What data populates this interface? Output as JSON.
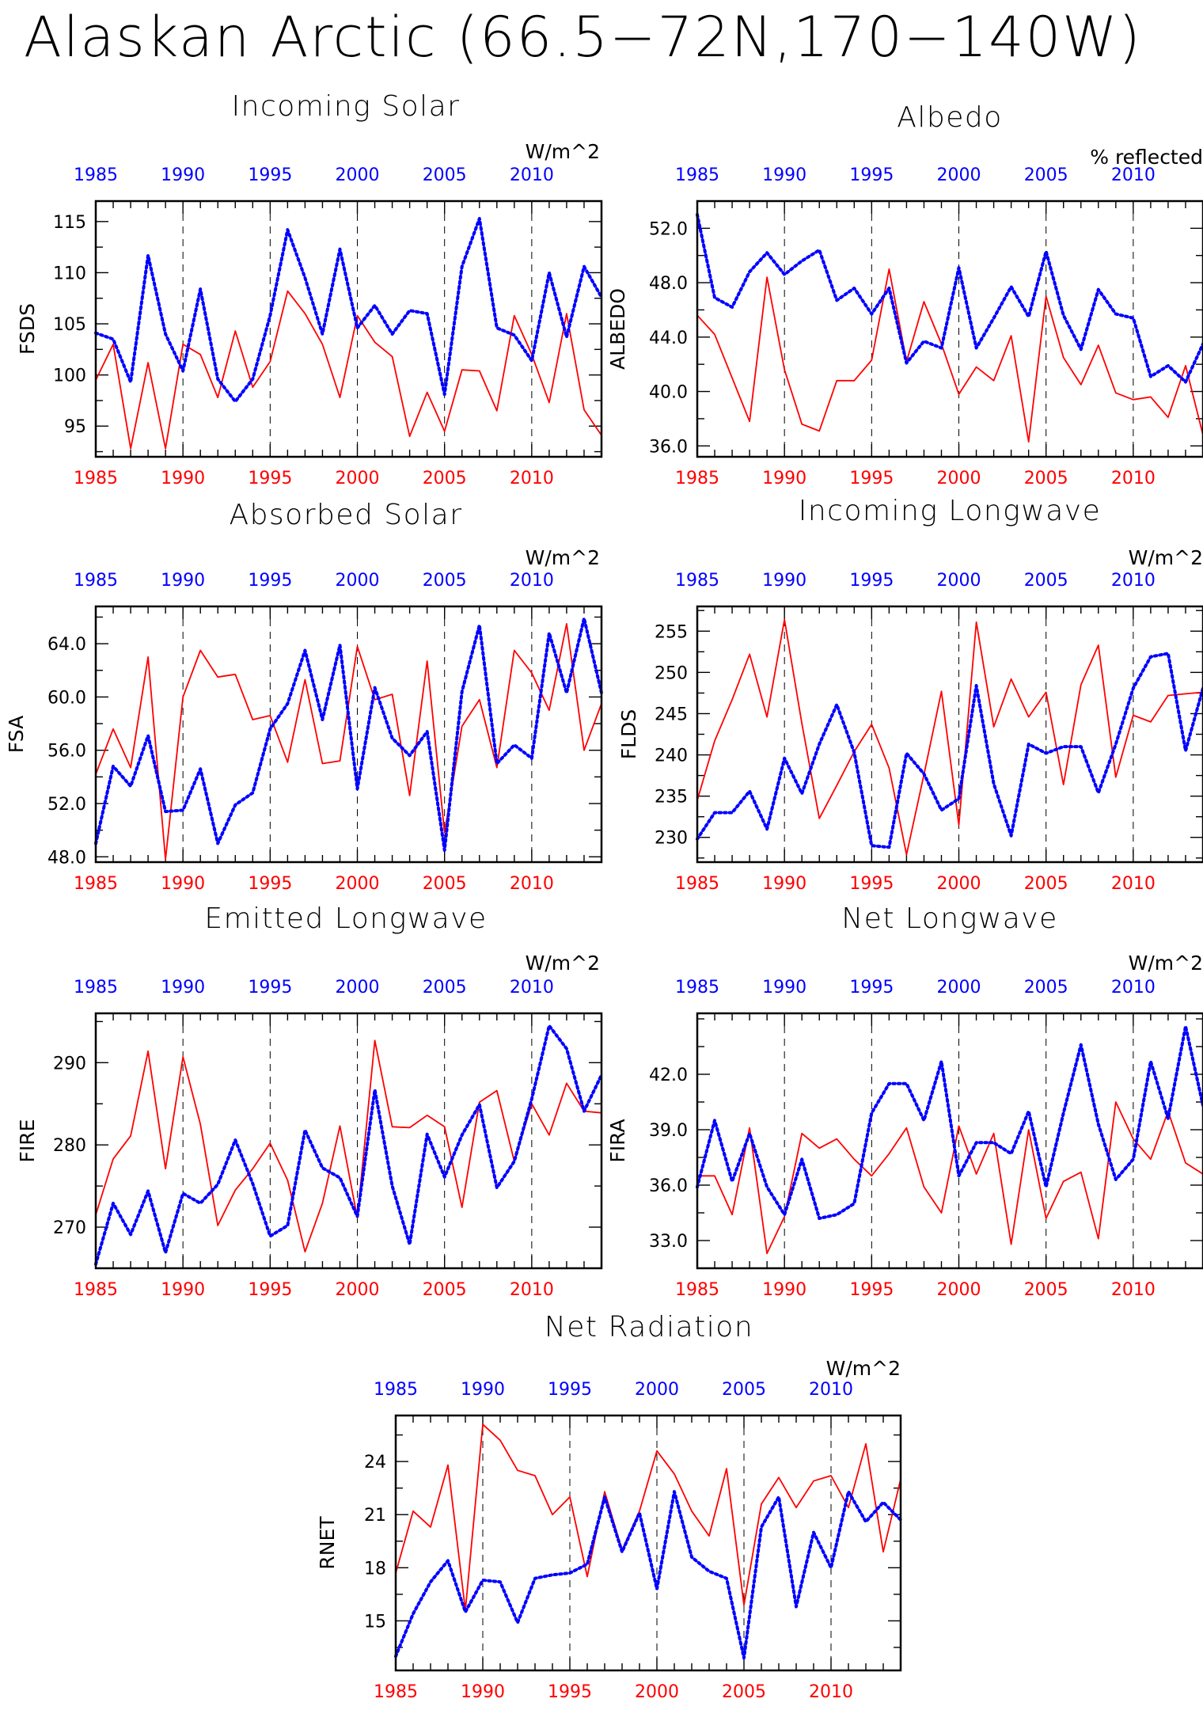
{
  "page_title": "Alaskan Arctic (66.5−72N,170−140W)",
  "colors": {
    "series_a": "#ff0000",
    "series_b": "#0000ff",
    "frame": "#000000"
  },
  "chart_data": [
    {
      "type": "line",
      "title": "Incoming Solar",
      "ylabel": "FSDS",
      "units": "W/m^2",
      "xlim": [
        1985,
        2014
      ],
      "ylim": [
        92,
        117
      ],
      "yticks": [
        95,
        100,
        105,
        110,
        115
      ],
      "xticks_bottom": [
        "1985",
        "1990",
        "1995",
        "2000",
        "2005",
        "2010"
      ],
      "xticks_top": [
        "1985",
        "1990",
        "1995",
        "2000",
        "2005",
        "2010"
      ],
      "x": [
        1985,
        1986,
        1987,
        1988,
        1989,
        1990,
        1991,
        1992,
        1993,
        1994,
        1995,
        1996,
        1997,
        1998,
        1999,
        2000,
        2001,
        2002,
        2003,
        2004,
        2005,
        2006,
        2007,
        2008,
        2009,
        2010,
        2011,
        2012,
        2013,
        2014
      ],
      "series": [
        {
          "color": "red",
          "style": "solid",
          "values": [
            99.5,
            103.0,
            92.8,
            101.2,
            92.8,
            103.0,
            102.0,
            97.8,
            104.3,
            98.8,
            101.3,
            108.2,
            106.0,
            103.0,
            97.8,
            105.8,
            103.2,
            101.8,
            94.0,
            98.3,
            94.5,
            100.5,
            100.4,
            96.5,
            105.8,
            102.0,
            97.3,
            106.0,
            96.6,
            94.1
          ]
        },
        {
          "color": "blue",
          "style": "dotted",
          "values": [
            104.1,
            103.5,
            99.3,
            111.7,
            104.0,
            100.4,
            108.4,
            99.6,
            97.4,
            99.6,
            105.8,
            114.2,
            109.5,
            104.0,
            112.3,
            104.6,
            106.8,
            104.0,
            106.3,
            106.0,
            98.1,
            110.6,
            115.3,
            104.6,
            103.9,
            101.4,
            110.0,
            103.7,
            110.6,
            107.6
          ]
        }
      ]
    },
    {
      "type": "line",
      "title": "Albedo",
      "ylabel": "ALBEDO",
      "units": "% reflected",
      "xlim": [
        1985,
        2014
      ],
      "ylim": [
        35.2,
        54.0
      ],
      "yticks": [
        "36.0",
        "40.0",
        "44.0",
        "48.0",
        "52.0"
      ],
      "xticks_bottom": [
        "1985",
        "1990",
        "1995",
        "2000",
        "2005",
        "2010"
      ],
      "xticks_top": [
        "1985",
        "1990",
        "1995",
        "2000",
        "2005",
        "2010"
      ],
      "x": [
        1985,
        1986,
        1987,
        1988,
        1989,
        1990,
        1991,
        1992,
        1993,
        1994,
        1995,
        1996,
        1997,
        1998,
        1999,
        2000,
        2001,
        2002,
        2003,
        2004,
        2005,
        2006,
        2007,
        2008,
        2009,
        2010,
        2011,
        2012,
        2013,
        2014
      ],
      "series": [
        {
          "color": "red",
          "style": "solid",
          "values": [
            45.6,
            44.2,
            41.0,
            37.8,
            48.4,
            41.6,
            37.6,
            37.1,
            40.8,
            40.8,
            42.3,
            49.0,
            42.2,
            46.6,
            43.5,
            39.8,
            41.8,
            40.8,
            44.1,
            36.3,
            47.0,
            42.5,
            40.5,
            43.4,
            39.9,
            39.4,
            39.6,
            38.1,
            41.9,
            36.8
          ]
        },
        {
          "color": "blue",
          "style": "dotted",
          "values": [
            53.0,
            46.9,
            46.2,
            48.8,
            50.2,
            48.6,
            49.6,
            50.4,
            46.7,
            47.6,
            45.7,
            47.6,
            42.1,
            43.7,
            43.2,
            49.1,
            43.2,
            45.4,
            47.7,
            45.5,
            50.3,
            45.6,
            43.1,
            47.5,
            45.7,
            45.4,
            41.1,
            41.9,
            40.7,
            43.5
          ]
        }
      ]
    },
    {
      "type": "line",
      "title": "Absorbed Solar",
      "ylabel": "FSA",
      "units": "W/m^2",
      "xlim": [
        1985,
        2014
      ],
      "ylim": [
        47.6,
        66.8
      ],
      "yticks": [
        "48.0",
        "52.0",
        "56.0",
        "60.0",
        "64.0"
      ],
      "xticks_bottom": [
        "1985",
        "1990",
        "1995",
        "2000",
        "2005",
        "2010"
      ],
      "xticks_top": [
        "1985",
        "1990",
        "1995",
        "2000",
        "2005",
        "2010"
      ],
      "x": [
        1985,
        1986,
        1987,
        1988,
        1989,
        1990,
        1991,
        1992,
        1993,
        1994,
        1995,
        1996,
        1997,
        1998,
        1999,
        2000,
        2001,
        2002,
        2003,
        2004,
        2005,
        2006,
        2007,
        2008,
        2009,
        2010,
        2011,
        2012,
        2013,
        2014
      ],
      "series": [
        {
          "color": "red",
          "style": "solid",
          "values": [
            54.2,
            57.6,
            54.7,
            63.0,
            47.8,
            60.0,
            63.5,
            61.5,
            61.7,
            58.3,
            58.6,
            55.1,
            61.3,
            55.0,
            55.2,
            63.8,
            59.8,
            60.2,
            52.6,
            62.7,
            49.8,
            57.8,
            59.8,
            54.7,
            63.5,
            61.8,
            59.0,
            65.5,
            56.0,
            59.5
          ]
        },
        {
          "color": "blue",
          "style": "dotted",
          "values": [
            49.0,
            54.8,
            53.3,
            57.1,
            51.4,
            51.5,
            54.6,
            49.0,
            51.9,
            52.8,
            57.6,
            59.5,
            63.5,
            58.3,
            63.9,
            53.1,
            60.7,
            56.9,
            55.6,
            57.4,
            48.5,
            60.4,
            65.4,
            55.0,
            56.4,
            55.4,
            64.8,
            60.3,
            65.9,
            60.3
          ]
        }
      ]
    },
    {
      "type": "line",
      "title": "Incoming Longwave",
      "ylabel": "FLDS",
      "units": "W/m^2",
      "xlim": [
        1985,
        2014
      ],
      "ylim": [
        227,
        258
      ],
      "yticks": [
        230,
        235,
        240,
        245,
        250,
        255
      ],
      "xticks_bottom": [
        "1985",
        "1990",
        "1995",
        "2000",
        "2005",
        "2010"
      ],
      "xticks_top": [
        "1985",
        "1990",
        "1995",
        "2000",
        "2005",
        "2010"
      ],
      "x": [
        1985,
        1986,
        1987,
        1988,
        1989,
        1990,
        1991,
        1992,
        1993,
        1994,
        1995,
        1996,
        1997,
        1998,
        1999,
        2000,
        2001,
        2002,
        2003,
        2004,
        2005,
        2006,
        2007,
        2008,
        2009,
        2010,
        2011,
        2012,
        2013,
        2014
      ],
      "series": [
        {
          "color": "red",
          "style": "solid",
          "values": [
            234.5,
            241.7,
            246.7,
            252.2,
            244.6,
            256.4,
            243.8,
            232.3,
            236.3,
            240.4,
            243.7,
            238.4,
            227.9,
            237.6,
            247.7,
            231.5,
            256.1,
            243.4,
            249.2,
            244.6,
            247.6,
            236.4,
            248.5,
            253.3,
            237.3,
            244.8,
            244.0,
            247.2,
            247.4,
            247.6
          ]
        },
        {
          "color": "blue",
          "style": "dotted",
          "values": [
            229.8,
            233.0,
            233.0,
            235.6,
            231.0,
            239.6,
            235.3,
            241.3,
            246.1,
            240.3,
            229.0,
            228.8,
            240.2,
            237.7,
            233.3,
            234.7,
            248.4,
            236.5,
            230.2,
            241.3,
            240.2,
            241.0,
            241.0,
            235.4,
            241.3,
            248.1,
            251.9,
            252.3,
            240.5,
            248.1
          ]
        }
      ]
    },
    {
      "type": "line",
      "title": "Emitted Longwave",
      "ylabel": "FIRE",
      "units": "W/m^2",
      "xlim": [
        1985,
        2014
      ],
      "ylim": [
        265,
        296
      ],
      "yticks": [
        270,
        280,
        290
      ],
      "xticks_bottom": [
        "1985",
        "1990",
        "1995",
        "2000",
        "2005",
        "2010"
      ],
      "xticks_top": [
        "1985",
        "1990",
        "1995",
        "2000",
        "2005",
        "2010"
      ],
      "x": [
        1985,
        1986,
        1987,
        1988,
        1989,
        1990,
        1991,
        1992,
        1993,
        1994,
        1995,
        1996,
        1997,
        1998,
        1999,
        2000,
        2001,
        2002,
        2003,
        2004,
        2005,
        2006,
        2007,
        2008,
        2009,
        2010,
        2011,
        2012,
        2013,
        2014
      ],
      "series": [
        {
          "color": "red",
          "style": "solid",
          "values": [
            271.5,
            278.3,
            281.1,
            291.4,
            277.1,
            290.7,
            282.5,
            270.2,
            274.5,
            277.1,
            280.2,
            275.7,
            267.0,
            272.9,
            282.3,
            271.1,
            292.7,
            282.2,
            282.1,
            283.6,
            282.2,
            272.4,
            285.2,
            286.6,
            278.0,
            285.0,
            281.2,
            287.5,
            284.1,
            283.9
          ]
        },
        {
          "color": "blue",
          "style": "dotted",
          "values": [
            265.5,
            272.9,
            269.1,
            274.4,
            266.9,
            274.1,
            272.9,
            275.2,
            280.6,
            275.3,
            268.9,
            270.2,
            281.8,
            277.2,
            276.0,
            271.3,
            286.7,
            275.0,
            267.9,
            281.3,
            276.1,
            281.2,
            284.9,
            274.8,
            278.0,
            285.6,
            294.5,
            291.7,
            284.1,
            288.5
          ]
        }
      ]
    },
    {
      "type": "line",
      "title": "Net Longwave",
      "ylabel": "FIRA",
      "units": "W/m^2",
      "xlim": [
        1985,
        2014
      ],
      "ylim": [
        31.5,
        45.3
      ],
      "yticks": [
        "33.0",
        "36.0",
        "39.0",
        "42.0"
      ],
      "xticks_bottom": [
        "1985",
        "1990",
        "1995",
        "2000",
        "2005",
        "2010"
      ],
      "xticks_top": [
        "1985",
        "1990",
        "1995",
        "2000",
        "2005",
        "2010"
      ],
      "x": [
        1985,
        1986,
        1987,
        1988,
        1989,
        1990,
        1991,
        1992,
        1993,
        1994,
        1995,
        1996,
        1997,
        1998,
        1999,
        2000,
        2001,
        2002,
        2003,
        2004,
        2005,
        2006,
        2007,
        2008,
        2009,
        2010,
        2011,
        2012,
        2013,
        2014
      ],
      "series": [
        {
          "color": "red",
          "style": "solid",
          "values": [
            36.5,
            36.5,
            34.4,
            39.1,
            32.3,
            34.3,
            38.8,
            38.0,
            38.5,
            37.4,
            36.5,
            37.7,
            39.1,
            35.9,
            34.5,
            39.2,
            36.6,
            38.8,
            32.8,
            39.0,
            34.2,
            36.2,
            36.7,
            33.1,
            40.5,
            38.5,
            37.4,
            40.0,
            37.2,
            36.6
          ]
        },
        {
          "color": "blue",
          "style": "dotted",
          "values": [
            35.9,
            39.5,
            36.2,
            38.8,
            35.9,
            34.4,
            37.4,
            34.2,
            34.4,
            35.0,
            39.9,
            41.5,
            41.5,
            39.5,
            42.7,
            36.5,
            38.3,
            38.3,
            37.7,
            40.0,
            35.9,
            39.9,
            43.6,
            39.3,
            36.3,
            37.4,
            42.7,
            39.6,
            44.6,
            40.3
          ]
        }
      ]
    },
    {
      "type": "line",
      "title": "Net Radiation",
      "ylabel": "RNET",
      "units": "W/m^2",
      "xlim": [
        1985,
        2014
      ],
      "ylim": [
        12.2,
        26.6
      ],
      "yticks": [
        15,
        18,
        21,
        24
      ],
      "xticks_bottom": [
        "1985",
        "1990",
        "1995",
        "2000",
        "2005",
        "2010"
      ],
      "xticks_top": [
        "1985",
        "1990",
        "1995",
        "2000",
        "2005",
        "2010"
      ],
      "x": [
        1985,
        1986,
        1987,
        1988,
        1989,
        1990,
        1991,
        1992,
        1993,
        1994,
        1995,
        1996,
        1997,
        1998,
        1999,
        2000,
        2001,
        2002,
        2003,
        2004,
        2005,
        2006,
        2007,
        2008,
        2009,
        2010,
        2011,
        2012,
        2013,
        2014
      ],
      "series": [
        {
          "color": "red",
          "style": "solid",
          "values": [
            17.7,
            21.2,
            20.3,
            23.8,
            15.6,
            26.1,
            25.2,
            23.5,
            23.2,
            21.0,
            22.0,
            17.5,
            22.3,
            19.0,
            21.2,
            24.6,
            23.3,
            21.2,
            19.8,
            23.6,
            15.9,
            21.6,
            23.1,
            21.4,
            22.9,
            23.2,
            21.4,
            25.0,
            18.9,
            23.0
          ]
        },
        {
          "color": "blue",
          "style": "dotted",
          "values": [
            13.0,
            15.4,
            17.2,
            18.4,
            15.5,
            17.3,
            17.2,
            14.9,
            17.4,
            17.6,
            17.7,
            18.2,
            22.0,
            18.9,
            21.1,
            16.8,
            22.3,
            18.6,
            17.8,
            17.4,
            12.9,
            20.3,
            22.0,
            15.8,
            20.0,
            18.0,
            22.3,
            20.6,
            21.7,
            20.7
          ]
        }
      ]
    }
  ]
}
